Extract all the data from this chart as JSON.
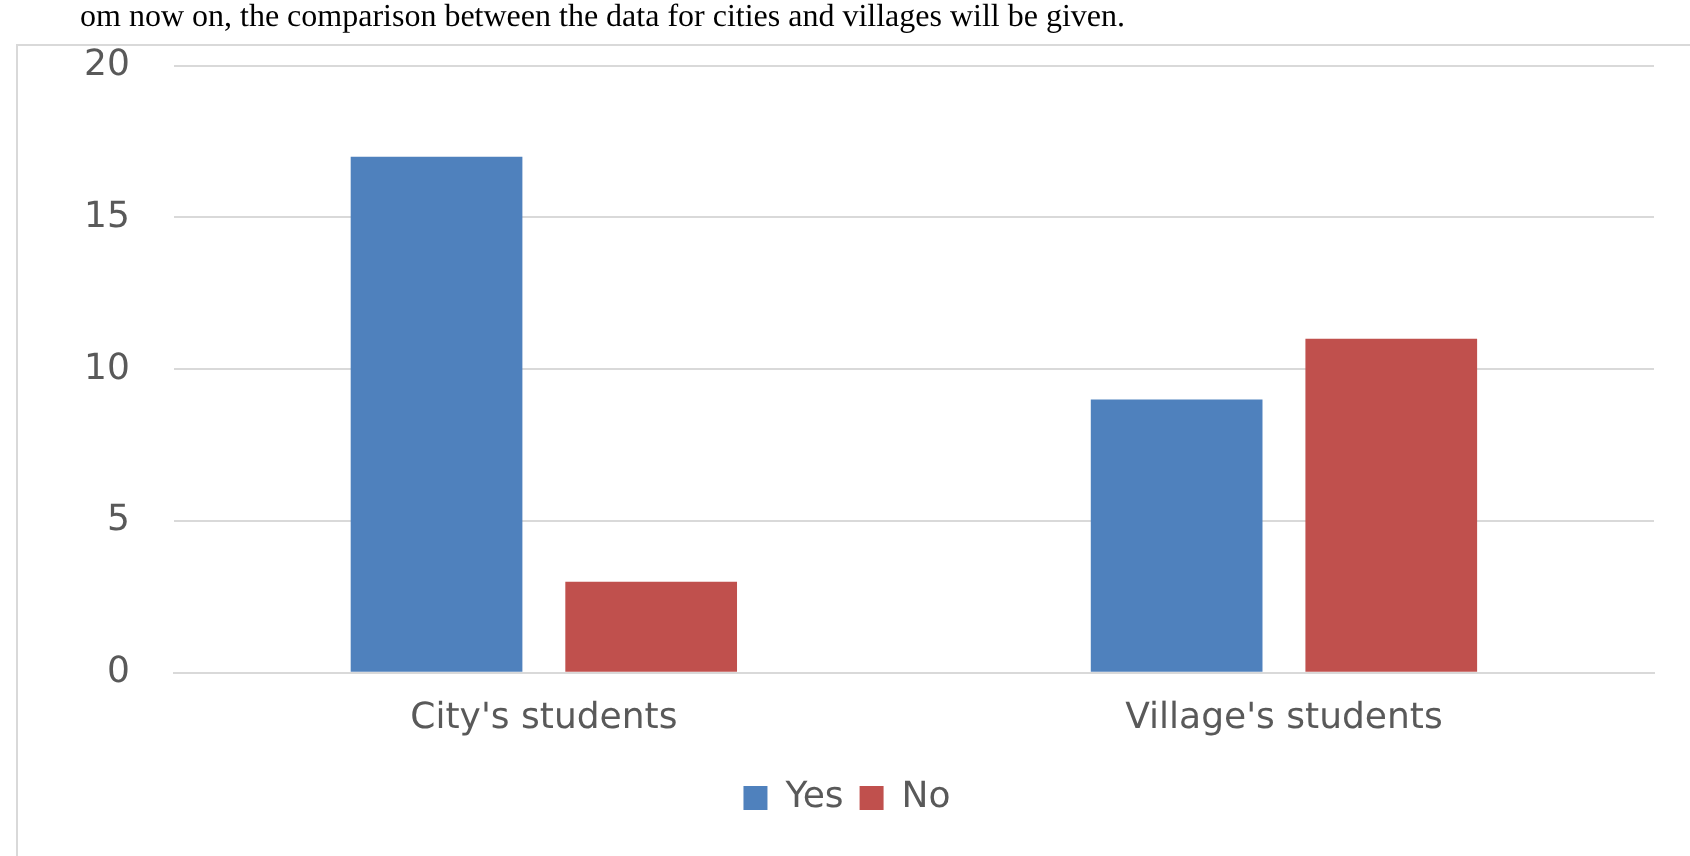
{
  "chart_data": {
    "type": "bar",
    "categories": [
      "City's students",
      "Village's students"
    ],
    "series": [
      {
        "name": "Yes",
        "color": "#4f81bd",
        "values": [
          17,
          9
        ]
      },
      {
        "name": "No",
        "color": "#c0504d",
        "values": [
          3,
          11
        ]
      }
    ],
    "ylim": [
      0,
      20
    ],
    "yticks": [
      0,
      5,
      10,
      15,
      20
    ],
    "grid": "y",
    "legend": "bottom",
    "annotations": [
      "om now on, the comparison between the data for cities and villages will be given."
    ]
  }
}
